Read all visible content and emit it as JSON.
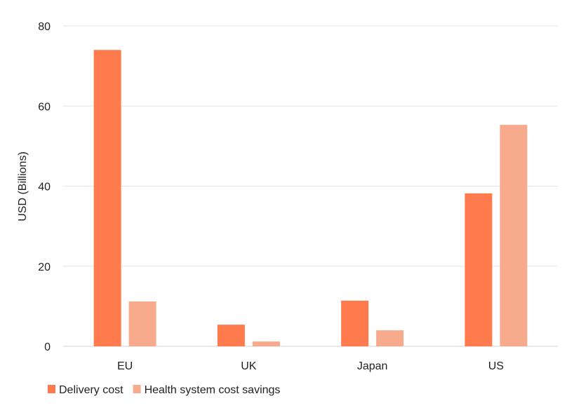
{
  "chart_data": {
    "type": "bar",
    "title": "",
    "xlabel": "",
    "ylabel": "USD (Billions)",
    "ylim": [
      0,
      80
    ],
    "yticks": [
      0,
      20,
      40,
      60,
      80
    ],
    "grid": true,
    "legend_position": "bottom-left",
    "categories": [
      "EU",
      "UK",
      "Japan",
      "US"
    ],
    "series": [
      {
        "name": "Delivery cost",
        "color": "#FF7A4D",
        "values": [
          74,
          5.4,
          11.4,
          38.2
        ]
      },
      {
        "name": "Health system cost savings",
        "color": "#F8AA8D",
        "values": [
          11.2,
          1.2,
          4.0,
          55.3
        ]
      }
    ]
  }
}
